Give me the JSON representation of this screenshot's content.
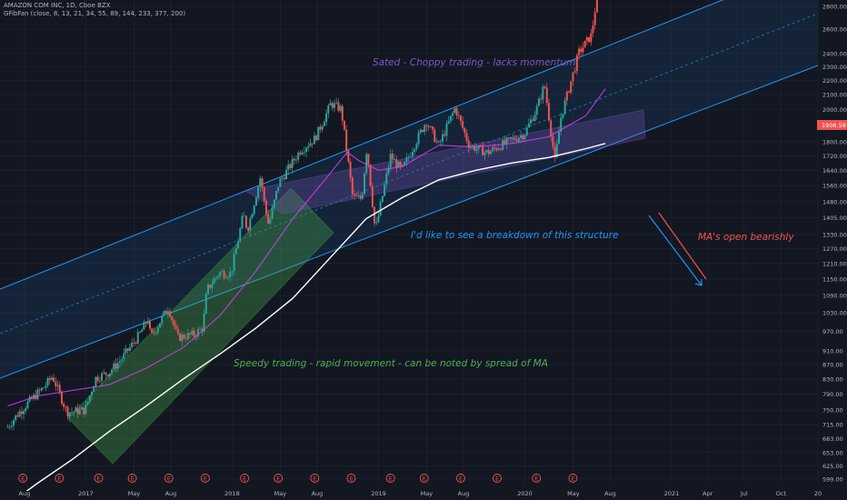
{
  "header": {
    "symbol_line": "AMAZON COM INC, 1D, Cboe BZX",
    "indicator_line": "GFibFan (close, 8, 13, 21, 34, 55, 89, 144, 233, 377, 200)"
  },
  "price_tag": "1906.59",
  "colors": {
    "background": "#131722",
    "channel": "#2196f3",
    "bull_candle": "#26a69a",
    "bear_candle": "#ef5350",
    "ma_fast": "#e040fb",
    "ma_slow": "#ffffff",
    "green_zone": "#4caf50",
    "purple_zone": "#7e57c2"
  },
  "annotations": {
    "top": "Sated - Choppy trading - lacks momentum",
    "middle": "I'd like to see a breakdown of this structure",
    "right": "MA's open bearishly",
    "bottom": "Speedy trading - rapid movement - can be noted by spread of MA"
  },
  "earnings_marker": "E",
  "chart_data": {
    "type": "line",
    "title": "AMAZON COM INC, 1D, Cboe BZX",
    "y_scale": "log",
    "ylim": [
      590,
      2800
    ],
    "y_ticks": [
      "2800.00",
      "2600.00",
      "2400.00",
      "2300.00",
      "2200.00",
      "2100.00",
      "2000.00",
      "1906.59",
      "1800.00",
      "1720.00",
      "1640.00",
      "1560.00",
      "1480.00",
      "1405.00",
      "1330.00",
      "1270.00",
      "1210.00",
      "1150.00",
      "1090.00",
      "1030.00",
      "970.00",
      "910.00",
      "870.00",
      "830.00",
      "790.00",
      "750.00",
      "715.00",
      "683.00",
      "653.00",
      "625.00",
      "599.00"
    ],
    "x_ticks": [
      "Aug",
      "2017",
      "May",
      "Aug",
      "2018",
      "May",
      "Aug",
      "2019",
      "May",
      "Aug",
      "2020",
      "May",
      "Aug",
      "2021",
      "Apr",
      "Jul",
      "Oct",
      "20"
    ],
    "x_labels_dates": [
      "2016-08",
      "2017-01",
      "2017-05",
      "2017-08",
      "2018-01",
      "2018-05",
      "2018-08",
      "2019-01",
      "2019-05",
      "2019-08",
      "2020-01",
      "2020-05",
      "2020-08",
      "2021-01",
      "2021-04",
      "2021-07",
      "2021-10",
      "2022-01"
    ],
    "earnings_dates": [
      "2016-07-28",
      "2016-10-27",
      "2017-02-02",
      "2017-04-27",
      "2017-07-27",
      "2017-10-26",
      "2018-02-01",
      "2018-04-26",
      "2018-07-26",
      "2018-10-25",
      "2019-01-31",
      "2019-04-25",
      "2019-07-25",
      "2019-10-24",
      "2020-01-30",
      "2020-04-30"
    ],
    "series": [
      {
        "values": [
          [
            "2016-06-20",
            710
          ],
          [
            "2016-07-15",
            740
          ],
          [
            "2016-08-10",
            768
          ],
          [
            "2016-09-20",
            810
          ],
          [
            "2016-10-10",
            838
          ],
          [
            "2016-10-28",
            790
          ],
          [
            "2016-11-15",
            745
          ],
          [
            "2016-12-30",
            750
          ],
          [
            "2017-01-25",
            832
          ],
          [
            "2017-03-01",
            850
          ],
          [
            "2017-03-31",
            886
          ],
          [
            "2017-05-15",
            960
          ],
          [
            "2017-06-05",
            1010
          ],
          [
            "2017-06-12",
            950
          ],
          [
            "2017-07-26",
            1050
          ],
          [
            "2017-08-18",
            950
          ],
          [
            "2017-09-29",
            960
          ],
          [
            "2017-10-20",
            982
          ],
          [
            "2017-10-30",
            1110
          ],
          [
            "2017-11-30",
            1175
          ],
          [
            "2017-12-29",
            1170
          ],
          [
            "2018-01-29",
            1420
          ],
          [
            "2018-02-08",
            1350
          ],
          [
            "2018-03-12",
            1600
          ],
          [
            "2018-04-02",
            1370
          ],
          [
            "2018-04-27",
            1572
          ],
          [
            "2018-06-20",
            1750
          ],
          [
            "2018-07-27",
            1820
          ],
          [
            "2018-08-31",
            2012
          ],
          [
            "2018-09-04",
            2039
          ],
          [
            "2018-09-30",
            2002
          ],
          [
            "2018-10-29",
            1500
          ],
          [
            "2018-11-20",
            1495
          ],
          [
            "2018-12-03",
            1770
          ],
          [
            "2018-12-24",
            1344
          ],
          [
            "2019-01-31",
            1718
          ],
          [
            "2019-02-28",
            1640
          ],
          [
            "2019-04-30",
            1926
          ],
          [
            "2019-05-31",
            1775
          ],
          [
            "2019-07-11",
            2011
          ],
          [
            "2019-08-15",
            1780
          ],
          [
            "2019-09-30",
            1736
          ],
          [
            "2019-10-31",
            1777
          ],
          [
            "2019-12-31",
            1847
          ],
          [
            "2020-01-31",
            2008
          ],
          [
            "2020-02-19",
            2170
          ],
          [
            "2020-03-16",
            1689
          ],
          [
            "2020-03-31",
            1950
          ],
          [
            "2020-04-10",
            2043
          ],
          [
            "2020-05-15",
            2409
          ],
          [
            "2020-06-15",
            2550
          ],
          [
            "2020-07-10",
            3200
          ]
        ]
      },
      {
        "values": [
          [
            "2016-06-20",
            760
          ],
          [
            "2016-09-01",
            785
          ],
          [
            "2016-12-01",
            800
          ],
          [
            "2017-03-01",
            815
          ],
          [
            "2017-06-01",
            860
          ],
          [
            "2017-09-01",
            920
          ],
          [
            "2017-12-01",
            1020
          ],
          [
            "2018-03-01",
            1180
          ],
          [
            "2018-06-01",
            1400
          ],
          [
            "2018-09-01",
            1620
          ],
          [
            "2018-10-15",
            1740
          ],
          [
            "2018-11-15",
            1690
          ],
          [
            "2019-01-01",
            1640
          ],
          [
            "2019-03-01",
            1660
          ],
          [
            "2019-06-01",
            1780
          ],
          [
            "2019-09-01",
            1770
          ],
          [
            "2019-12-01",
            1790
          ],
          [
            "2020-03-01",
            1830
          ],
          [
            "2020-06-01",
            1960
          ],
          [
            "2020-07-20",
            2140
          ]
        ]
      },
      {
        "values": [
          [
            "2016-06-20",
            550
          ],
          [
            "2016-09-01",
            590
          ],
          [
            "2016-12-01",
            640
          ],
          [
            "2017-03-01",
            700
          ],
          [
            "2017-06-01",
            760
          ],
          [
            "2017-09-01",
            830
          ],
          [
            "2017-12-01",
            900
          ],
          [
            "2018-03-01",
            980
          ],
          [
            "2018-06-01",
            1080
          ],
          [
            "2018-09-01",
            1230
          ],
          [
            "2018-12-01",
            1400
          ],
          [
            "2019-03-01",
            1500
          ],
          [
            "2019-06-01",
            1590
          ],
          [
            "2019-09-01",
            1640
          ],
          [
            "2019-12-01",
            1680
          ],
          [
            "2020-03-01",
            1710
          ],
          [
            "2020-06-01",
            1760
          ],
          [
            "2020-07-20",
            1790
          ]
        ]
      }
    ]
  }
}
